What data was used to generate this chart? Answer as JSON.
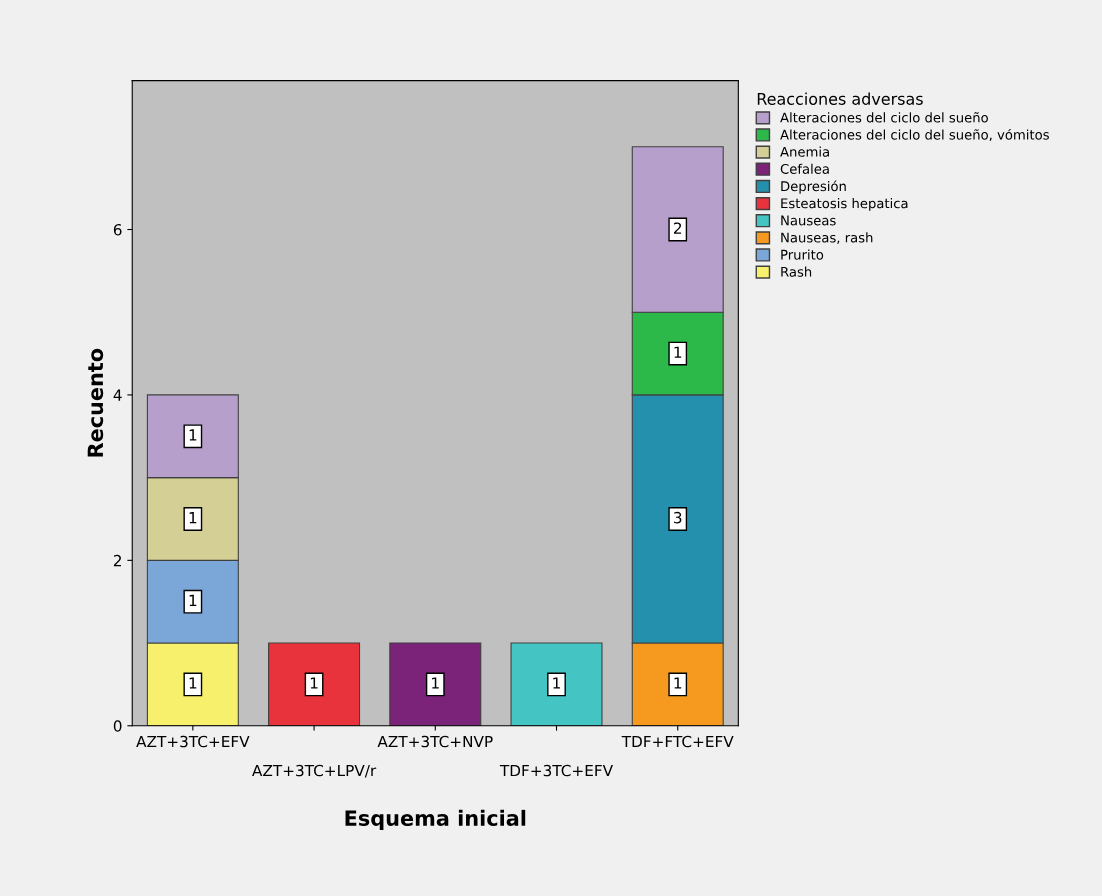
{
  "chart_data": {
    "type": "bar",
    "stacked": true,
    "xlabel": "Esquema inicial",
    "ylabel": "Recuento",
    "legend_title": "Reacciones adversas",
    "categories": [
      "AZT+3TC+EFV",
      "AZT+3TC+LPV/r",
      "AZT+3TC+NVP",
      "TDF+3TC+EFV",
      "TDF+FTC+EFV"
    ],
    "series": [
      {
        "name": "Rash",
        "color": "#f7f06c",
        "values": [
          1,
          null,
          null,
          null,
          null
        ]
      },
      {
        "name": "Prurito",
        "color": "#7ba7d8",
        "values": [
          1,
          null,
          null,
          null,
          null
        ]
      },
      {
        "name": "Nauseas, rash",
        "color": "#f59a1f",
        "values": [
          null,
          null,
          null,
          null,
          1
        ]
      },
      {
        "name": "Nauseas",
        "color": "#45c4c4",
        "values": [
          null,
          null,
          null,
          1,
          null
        ]
      },
      {
        "name": "Esteatosis hepatica",
        "color": "#e8323c",
        "values": [
          null,
          1,
          null,
          null,
          null
        ]
      },
      {
        "name": "Depresión",
        "color": "#2590ad",
        "values": [
          null,
          null,
          null,
          null,
          3
        ]
      },
      {
        "name": "Cefalea",
        "color": "#7b2378",
        "values": [
          null,
          null,
          1,
          null,
          null
        ]
      },
      {
        "name": "Anemia",
        "color": "#d4cf95",
        "values": [
          1,
          null,
          null,
          null,
          null
        ]
      },
      {
        "name": "Alteraciones del ciclo del sueño, vómitos",
        "color": "#2db84a",
        "values": [
          null,
          null,
          null,
          null,
          1
        ]
      },
      {
        "name": "Alteraciones del ciclo del sueño",
        "color": "#b79fcb",
        "values": [
          1,
          null,
          null,
          null,
          2
        ]
      }
    ],
    "ylim": [
      0,
      7.8
    ],
    "yticks": [
      0,
      2,
      4,
      6
    ],
    "grid": false,
    "legend": "top right",
    "data_labels": true
  }
}
